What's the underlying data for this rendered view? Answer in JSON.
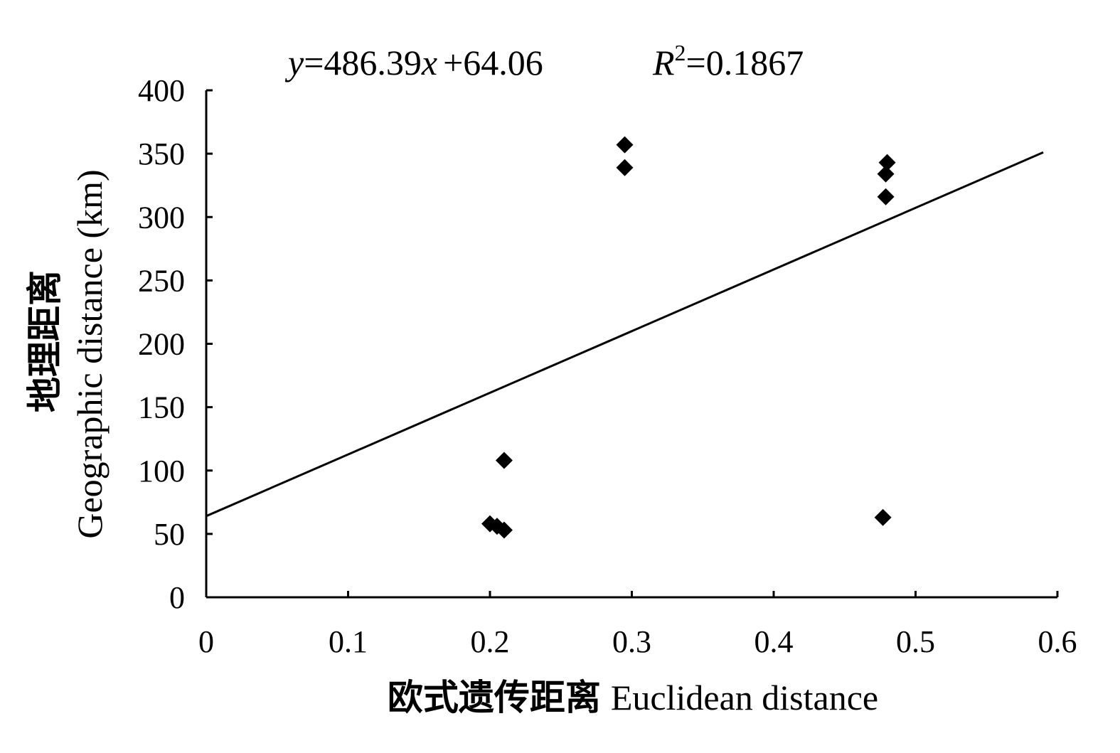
{
  "chart_data": {
    "type": "scatter",
    "annotation": {
      "equation_y": "y",
      "equation_rest": "=486.39",
      "equation_x": "x",
      "equation_tail": "+64.06",
      "r2_label": "R",
      "r2_sup": "2",
      "r2_value": "=0.1867"
    },
    "xlabel_cn": "欧式遗传距离",
    "xlabel_en": "Euclidean distance",
    "ylabel_cn": "地理距离",
    "ylabel_en": "Geographic distance (km)",
    "xlim": [
      0,
      0.6
    ],
    "ylim": [
      0,
      400
    ],
    "x_ticks": [
      0,
      0.1,
      0.2,
      0.3,
      0.4,
      0.5,
      0.6
    ],
    "x_tick_labels": [
      "0",
      "0.1",
      "0.2",
      "0.3",
      "0.4",
      "0.5",
      "0.6"
    ],
    "y_ticks": [
      0,
      50,
      100,
      150,
      200,
      250,
      300,
      350,
      400
    ],
    "y_tick_labels": [
      "0",
      "50",
      "100",
      "150",
      "200",
      "250",
      "300",
      "350",
      "400"
    ],
    "points": [
      {
        "x": 0.2,
        "y": 58
      },
      {
        "x": 0.205,
        "y": 56
      },
      {
        "x": 0.21,
        "y": 53
      },
      {
        "x": 0.21,
        "y": 108
      },
      {
        "x": 0.295,
        "y": 357
      },
      {
        "x": 0.295,
        "y": 339
      },
      {
        "x": 0.48,
        "y": 343
      },
      {
        "x": 0.479,
        "y": 334
      },
      {
        "x": 0.479,
        "y": 316
      },
      {
        "x": 0.477,
        "y": 63
      }
    ],
    "trendline": {
      "slope": 486.39,
      "intercept": 64.06,
      "x_start": 0,
      "x_end": 0.59
    },
    "grid": false,
    "legend": "none",
    "marker": "diamond",
    "color": "#000000"
  }
}
